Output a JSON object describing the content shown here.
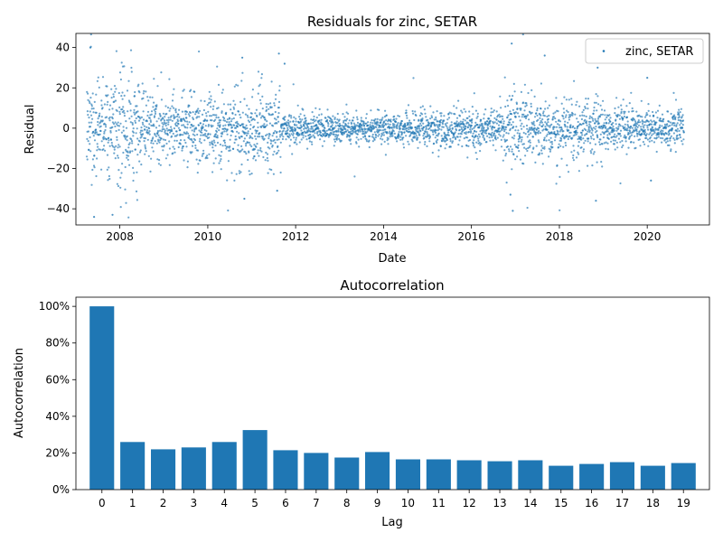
{
  "chart_data": [
    {
      "type": "scatter",
      "title": "Residuals for zinc, SETAR",
      "xlabel": "Date",
      "ylabel": "Residual",
      "xlim": [
        "2007-01-01",
        "2021-06-01"
      ],
      "ylim": [
        -48,
        47
      ],
      "x_tick_labels": [
        "2008",
        "2010",
        "2012",
        "2014",
        "2016",
        "2018",
        "2020"
      ],
      "y_tick_labels": [
        "40",
        "20",
        "0",
        "−20",
        "−40"
      ],
      "legend": {
        "position": "top-right",
        "entries": [
          "zinc, SETAR"
        ]
      },
      "color": "#1f77b4",
      "grid": false,
      "series": [
        {
          "name": "zinc, SETAR",
          "start_date": "2007-04-01",
          "end_date": "2020-11-01",
          "trading_days_approx": 3450,
          "residual_std_by_period": [
            {
              "from": "2007-04-01",
              "to": "2008-06-01",
              "std": 13
            },
            {
              "from": "2008-06-01",
              "to": "2010-01-01",
              "std": 8
            },
            {
              "from": "2010-01-01",
              "to": "2011-09-01",
              "std": 9
            },
            {
              "from": "2011-09-01",
              "to": "2014-09-01",
              "std": 3.5
            },
            {
              "from": "2014-09-01",
              "to": "2016-10-01",
              "std": 4.5
            },
            {
              "from": "2016-10-01",
              "to": "2017-06-01",
              "std": 9
            },
            {
              "from": "2017-06-01",
              "to": "2019-01-01",
              "std": 7
            },
            {
              "from": "2019-01-01",
              "to": "2020-11-01",
              "std": 4.5
            }
          ],
          "notable_points": [
            {
              "x": "2007-05-01",
              "y": 40
            },
            {
              "x": "2007-06-01",
              "y": -44
            },
            {
              "x": "2007-11-01",
              "y": -43
            },
            {
              "x": "2010-10-15",
              "y": 35
            },
            {
              "x": "2010-11-01",
              "y": -35
            },
            {
              "x": "2011-08-15",
              "y": 37
            },
            {
              "x": "2011-10-01",
              "y": 32
            },
            {
              "x": "2011-08-01",
              "y": -31
            },
            {
              "x": "2016-12-01",
              "y": 42
            },
            {
              "x": "2016-12-10",
              "y": -41
            },
            {
              "x": "2016-11-20",
              "y": -33
            },
            {
              "x": "2017-09-01",
              "y": 36
            },
            {
              "x": "2018-11-01",
              "y": -36
            },
            {
              "x": "2018-11-15",
              "y": 30
            },
            {
              "x": "2020-01-01",
              "y": 25
            },
            {
              "x": "2020-02-01",
              "y": -26
            }
          ]
        }
      ]
    },
    {
      "type": "bar",
      "title": "Autocorrelation",
      "xlabel": "Lag",
      "ylabel": "Autocorrelation",
      "categories": [
        "0",
        "1",
        "2",
        "3",
        "4",
        "5",
        "6",
        "7",
        "8",
        "9",
        "10",
        "11",
        "12",
        "13",
        "14",
        "15",
        "16",
        "17",
        "18",
        "19"
      ],
      "values": [
        1.0,
        0.26,
        0.22,
        0.23,
        0.26,
        0.325,
        0.215,
        0.2,
        0.175,
        0.205,
        0.165,
        0.165,
        0.16,
        0.155,
        0.16,
        0.13,
        0.14,
        0.15,
        0.13,
        0.145
      ],
      "ylim": [
        0,
        1.05
      ],
      "y_ticks": [
        0,
        0.2,
        0.4,
        0.6,
        0.8,
        1.0
      ],
      "y_tick_labels": [
        "0%",
        "20%",
        "40%",
        "60%",
        "80%",
        "100%"
      ],
      "color": "#1f77b4",
      "grid": false
    }
  ]
}
